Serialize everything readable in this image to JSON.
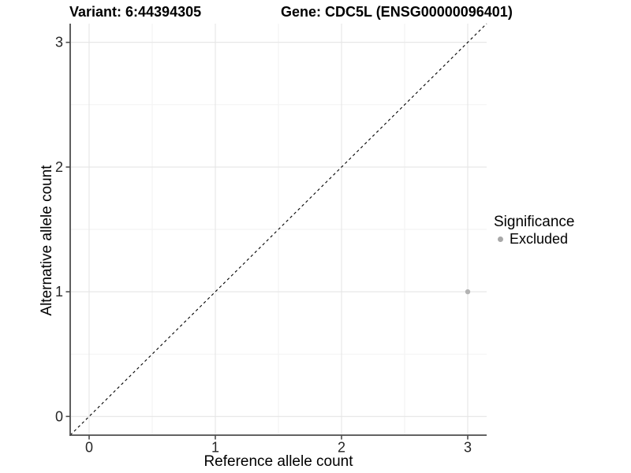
{
  "titles": {
    "variant": "Variant: 6:44394305",
    "gene": "Gene: CDC5L (ENSG00000096401)"
  },
  "axes": {
    "x_label": "Reference allele count",
    "y_label": "Alternative allele count"
  },
  "legend": {
    "title": "Significance",
    "items": [
      {
        "label": "Excluded",
        "color": "#a8a8a8"
      }
    ]
  },
  "colors": {
    "background": "#ffffff",
    "grid_major": "#e5e5e5",
    "grid_minor": "#f1f1f1",
    "axis_line": "#4d4d4d",
    "tick_mark": "#4d4d4d",
    "tick_label": "#262626",
    "reference_line": "#000000",
    "point": "#b3b3b3"
  },
  "chart_data": {
    "type": "scatter",
    "title": "Variant: 6:44394305 | Gene: CDC5L (ENSG00000096401)",
    "xlabel": "Reference allele count",
    "ylabel": "Alternative allele count",
    "xlim": [
      -0.15,
      3.15
    ],
    "ylim": [
      -0.15,
      3.15
    ],
    "x_ticks": [
      0,
      1,
      2,
      3
    ],
    "y_ticks": [
      0,
      1,
      2,
      3
    ],
    "x_minor_ticks": [
      0.5,
      1.5,
      2.5
    ],
    "y_minor_ticks": [
      0.5,
      1.5,
      2.5
    ],
    "grid": true,
    "legend_position": "right",
    "series": [
      {
        "name": "Excluded",
        "color": "#b3b3b3",
        "points": [
          {
            "x": 3,
            "y": 1
          }
        ]
      }
    ],
    "reference_line": {
      "slope": 1,
      "intercept": 0,
      "style": "dashed"
    }
  }
}
